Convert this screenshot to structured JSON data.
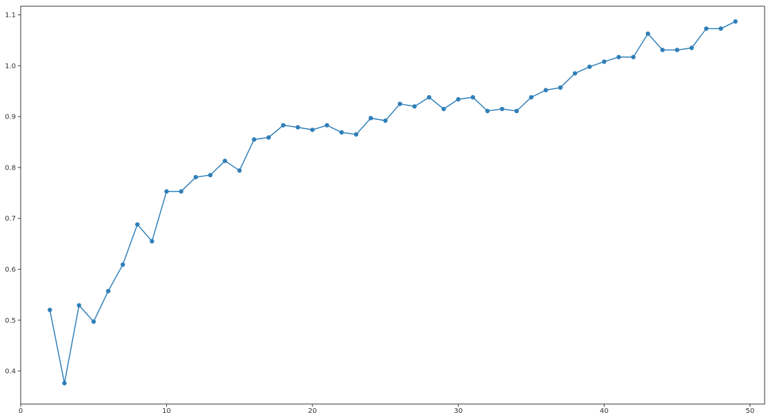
{
  "chart_data": {
    "type": "line",
    "title": "",
    "xlabel": "",
    "ylabel": "",
    "xlim": [
      0,
      51
    ],
    "ylim": [
      0.335,
      1.117
    ],
    "xticks": [
      0,
      10,
      20,
      30,
      40,
      50
    ],
    "yticks": [
      0.4,
      0.5,
      0.6,
      0.7,
      0.8,
      0.9,
      1.0,
      1.1
    ],
    "xtick_labels": [
      "0",
      "10",
      "20",
      "30",
      "40",
      "50"
    ],
    "ytick_labels": [
      "0.4",
      "0.5",
      "0.6",
      "0.7",
      "0.8",
      "0.9",
      "1.0",
      "1.1"
    ],
    "grid": false,
    "marker": "circle",
    "color": "#2f7fb8",
    "x": [
      2,
      3,
      4,
      5,
      6,
      7,
      8,
      9,
      10,
      11,
      12,
      13,
      14,
      15,
      16,
      17,
      18,
      19,
      20,
      21,
      22,
      23,
      24,
      25,
      26,
      27,
      28,
      29,
      30,
      31,
      32,
      33,
      34,
      35,
      36,
      37,
      38,
      39,
      40,
      41,
      42,
      43,
      44,
      45,
      46,
      47,
      48,
      49
    ],
    "series": [
      {
        "values": [
          0.52,
          0.376,
          0.529,
          0.497,
          0.557,
          0.609,
          0.688,
          0.655,
          0.753,
          0.753,
          0.781,
          0.785,
          0.813,
          0.794,
          0.855,
          0.859,
          0.883,
          0.879,
          0.874,
          0.883,
          0.869,
          0.865,
          0.897,
          0.892,
          0.925,
          0.92,
          0.938,
          0.915,
          0.934,
          0.938,
          0.911,
          0.915,
          0.911,
          0.938,
          0.952,
          0.957,
          0.985,
          0.998,
          1.008,
          1.017,
          1.017,
          1.063,
          1.031,
          1.031,
          1.035,
          1.073,
          1.073,
          1.087
        ]
      }
    ]
  }
}
